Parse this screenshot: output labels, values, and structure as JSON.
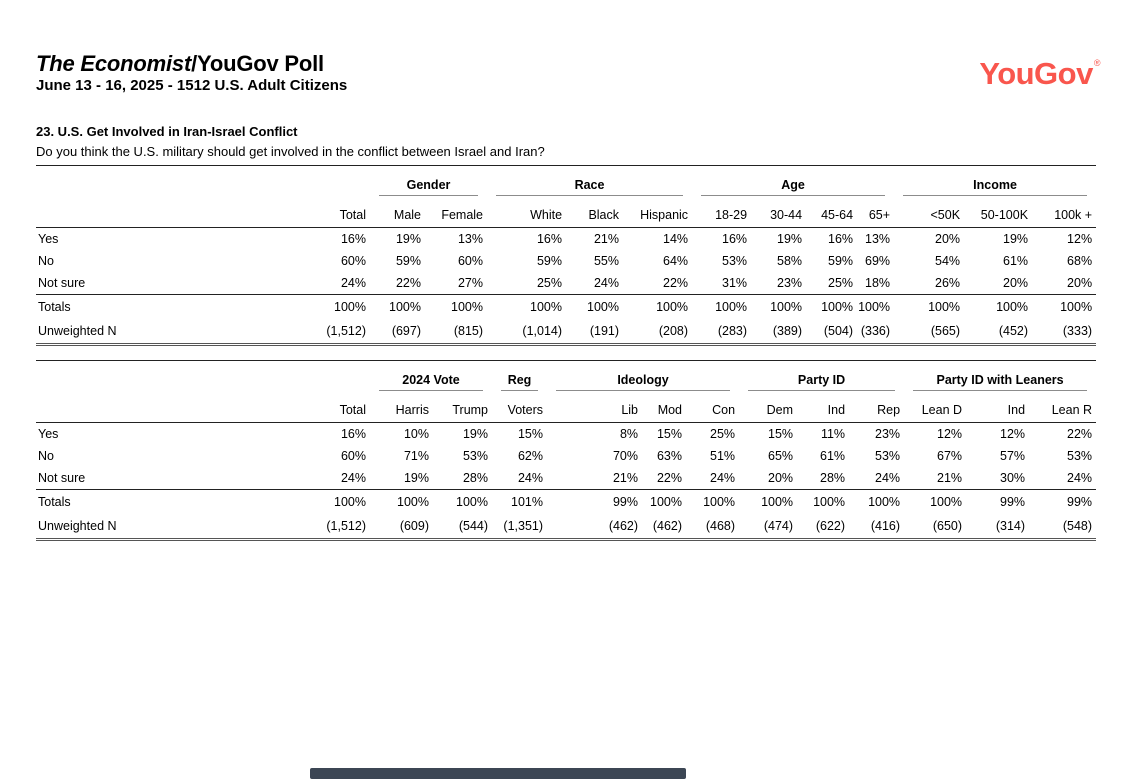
{
  "page": {
    "title_italic": "The Economist",
    "title_rest": "/YouGov Poll",
    "subtitle": "June 13 - 16, 2025 - 1512 U.S. Adult Citizens",
    "logo_text": "YouGov",
    "logo_mark": "®"
  },
  "colors": {
    "brand": "#F9564D",
    "scrollbar": "#3C4654",
    "rule_dark": "#222222",
    "rule_light": "#8c8c8c"
  },
  "question": {
    "number_label": "23. U.S. Get Involved in Iran-Israel Conflict",
    "text": "Do you think the U.S. military should get involved in the conflict between Israel and Iran?"
  },
  "tables": [
    {
      "groups": [
        {
          "label": "",
          "span": 1
        },
        {
          "label": "Gender",
          "span": 2
        },
        {
          "label": "Race",
          "span": 3
        },
        {
          "label": "Age",
          "span": 4
        },
        {
          "label": "Income",
          "span": 3
        }
      ],
      "columns": [
        "Total",
        "Male",
        "Female",
        "White",
        "Black",
        "Hispanic",
        "18-29",
        "30-44",
        "45-64",
        "65+",
        "<50K",
        "50-100K",
        "100k +"
      ],
      "rows": [
        {
          "label": "Yes",
          "values": [
            "16%",
            "19%",
            "13%",
            "16%",
            "21%",
            "14%",
            "16%",
            "19%",
            "16%",
            "13%",
            "20%",
            "19%",
            "12%"
          ]
        },
        {
          "label": "No",
          "values": [
            "60%",
            "59%",
            "60%",
            "59%",
            "55%",
            "64%",
            "53%",
            "58%",
            "59%",
            "69%",
            "54%",
            "61%",
            "68%"
          ]
        },
        {
          "label": "Not sure",
          "values": [
            "24%",
            "22%",
            "27%",
            "25%",
            "24%",
            "22%",
            "31%",
            "23%",
            "25%",
            "18%",
            "26%",
            "20%",
            "20%"
          ]
        }
      ],
      "footer_rows": [
        {
          "label": "Totals",
          "values": [
            "100%",
            "100%",
            "100%",
            "100%",
            "100%",
            "100%",
            "100%",
            "100%",
            "100%",
            "100%",
            "100%",
            "100%",
            "100%"
          ]
        },
        {
          "label": "Unweighted N",
          "values": [
            "(1,512)",
            "(697)",
            "(815)",
            "(1,014)",
            "(191)",
            "(208)",
            "(283)",
            "(389)",
            "(504)",
            "(336)",
            "(565)",
            "(452)",
            "(333)"
          ]
        }
      ]
    },
    {
      "groups": [
        {
          "label": "",
          "span": 1
        },
        {
          "label": "2024 Vote",
          "span": 2
        },
        {
          "label": "Reg",
          "span": 1
        },
        {
          "label": "Ideology",
          "span": 3
        },
        {
          "label": "Party ID",
          "span": 3
        },
        {
          "label": "Party ID with Leaners",
          "span": 3
        }
      ],
      "columns": [
        "Total",
        "Harris",
        "Trump",
        "Voters",
        "Lib",
        "Mod",
        "Con",
        "Dem",
        "Ind",
        "Rep",
        "Lean D",
        "Ind",
        "Lean R"
      ],
      "rows": [
        {
          "label": "Yes",
          "values": [
            "16%",
            "10%",
            "19%",
            "15%",
            "8%",
            "15%",
            "25%",
            "15%",
            "11%",
            "23%",
            "12%",
            "12%",
            "22%"
          ]
        },
        {
          "label": "No",
          "values": [
            "60%",
            "71%",
            "53%",
            "62%",
            "70%",
            "63%",
            "51%",
            "65%",
            "61%",
            "53%",
            "67%",
            "57%",
            "53%"
          ]
        },
        {
          "label": "Not sure",
          "values": [
            "24%",
            "19%",
            "28%",
            "24%",
            "21%",
            "22%",
            "24%",
            "20%",
            "28%",
            "24%",
            "21%",
            "30%",
            "24%"
          ]
        }
      ],
      "footer_rows": [
        {
          "label": "Totals",
          "values": [
            "100%",
            "100%",
            "100%",
            "101%",
            "99%",
            "100%",
            "100%",
            "100%",
            "100%",
            "100%",
            "100%",
            "99%",
            "99%"
          ]
        },
        {
          "label": "Unweighted N",
          "values": [
            "(1,512)",
            "(609)",
            "(544)",
            "(1,351)",
            "(462)",
            "(462)",
            "(468)",
            "(474)",
            "(622)",
            "(416)",
            "(650)",
            "(314)",
            "(548)"
          ]
        }
      ]
    }
  ]
}
